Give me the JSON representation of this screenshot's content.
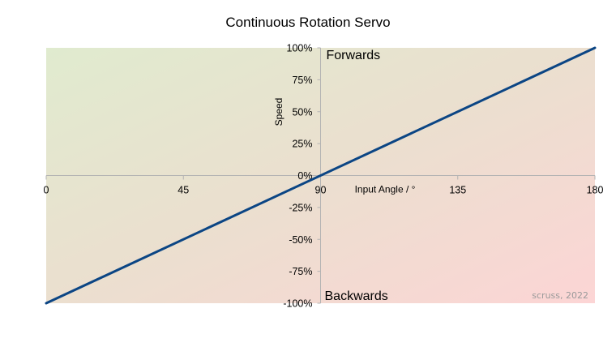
{
  "chart_data": {
    "type": "line",
    "title": "Continuous Rotation Servo",
    "xlabel": "Input Angle / °",
    "ylabel": "Speed",
    "xlim": [
      0,
      180
    ],
    "ylim": [
      -100,
      100
    ],
    "x_ticks": [
      0,
      45,
      90,
      135,
      180
    ],
    "y_ticks": [
      {
        "value": 100,
        "label": "100%"
      },
      {
        "value": 75,
        "label": "75%"
      },
      {
        "value": 50,
        "label": "50%"
      },
      {
        "value": 25,
        "label": "25%"
      },
      {
        "value": 0,
        "label": "0%"
      },
      {
        "value": -25,
        "label": "-25%"
      },
      {
        "value": -50,
        "label": "-50%"
      },
      {
        "value": -75,
        "label": "-75%"
      },
      {
        "value": -100,
        "label": "-100%"
      }
    ],
    "series": [
      {
        "x": [
          0,
          180
        ],
        "y": [
          -100,
          100
        ],
        "color": "#0b4584"
      }
    ],
    "annotations": {
      "top": "Forwards",
      "bottom": "Backwards"
    },
    "credit": "scruss, 2022",
    "background_gradient": {
      "top_left": "#e0ebcf",
      "middle": "#ebdfcf",
      "bottom_right": "#fcd5d5"
    },
    "grid": false,
    "legend": "none"
  }
}
